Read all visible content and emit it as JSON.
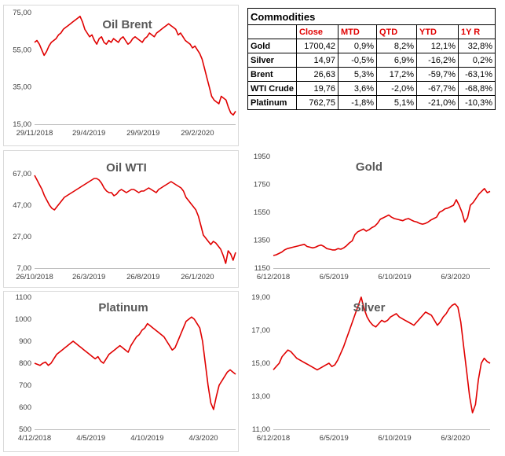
{
  "table": {
    "title": "Commodities",
    "headers": [
      "Close",
      "MTD",
      "QTD",
      "YTD",
      "1Y R"
    ],
    "rows": [
      {
        "name": "Gold",
        "values": [
          "1700,42",
          "0,9%",
          "8,2%",
          "12,1%",
          "32,8%"
        ]
      },
      {
        "name": "Silver",
        "values": [
          "14,97",
          "-0,5%",
          "6,9%",
          "-16,2%",
          "0,2%"
        ]
      },
      {
        "name": "Brent",
        "values": [
          "26,63",
          "5,3%",
          "17,2%",
          "-59,7%",
          "-63,1%"
        ]
      },
      {
        "name": "WTI Crude",
        "values": [
          "19,76",
          "3,6%",
          "-2,0%",
          "-67,7%",
          "-68,8%"
        ]
      },
      {
        "name": "Platinum",
        "values": [
          "762,75",
          "-1,8%",
          "5,1%",
          "-21,0%",
          "-10,3%"
        ]
      }
    ]
  },
  "colors": {
    "line": "#e00000",
    "header_text": "#e00000",
    "title_text": "#595959"
  },
  "chart_data": [
    {
      "type": "line",
      "title": "Oil Brent",
      "xlabel": "",
      "ylabel": "",
      "ylim": [
        15,
        75
      ],
      "yticks": [
        "75,00",
        "55,00",
        "35,00",
        "15,00"
      ],
      "ytick_values": [
        75,
        55,
        35,
        15
      ],
      "xticks": [
        "29/11/2018",
        "29/4/2019",
        "29/9/2019",
        "29/2/2020"
      ],
      "xtick_positions": [
        0,
        0.27,
        0.54,
        0.81
      ],
      "series": [
        {
          "values": [
            59,
            60,
            58,
            55,
            52,
            54,
            57,
            59,
            60,
            61,
            63,
            64,
            66,
            67,
            68,
            69,
            70,
            71,
            72,
            73,
            70,
            66,
            64,
            62,
            63,
            60,
            58,
            61,
            62,
            59,
            58,
            60,
            59,
            61,
            60,
            59,
            61,
            62,
            60,
            58,
            59,
            61,
            62,
            61,
            60,
            59,
            61,
            62,
            64,
            63,
            62,
            64,
            65,
            66,
            67,
            68,
            69,
            68,
            67,
            66,
            63,
            64,
            62,
            60,
            59,
            58,
            56,
            57,
            55,
            53,
            50,
            45,
            40,
            35,
            30,
            28,
            27,
            26,
            30,
            29,
            28,
            24,
            21,
            20,
            22
          ]
        }
      ]
    },
    {
      "type": "line",
      "title": "Oil WTI",
      "xlabel": "",
      "ylabel": "",
      "ylim": [
        7,
        67
      ],
      "yticks": [
        "67,00",
        "47,00",
        "27,00",
        "7,00"
      ],
      "ytick_values": [
        67,
        47,
        27,
        7
      ],
      "xticks": [
        "26/10/2018",
        "26/3/2019",
        "26/8/2019",
        "26/1/2020"
      ],
      "xtick_positions": [
        0,
        0.27,
        0.54,
        0.81
      ],
      "series": [
        {
          "values": [
            66,
            63,
            60,
            57,
            53,
            50,
            47,
            45,
            44,
            46,
            48,
            50,
            52,
            53,
            54,
            55,
            56,
            57,
            58,
            59,
            60,
            61,
            62,
            63,
            64,
            64,
            63,
            61,
            58,
            56,
            55,
            55,
            53,
            54,
            56,
            57,
            56,
            55,
            56,
            57,
            57,
            56,
            55,
            56,
            56,
            57,
            58,
            57,
            56,
            55,
            57,
            58,
            59,
            60,
            61,
            62,
            61,
            60,
            59,
            58,
            56,
            52,
            50,
            48,
            46,
            44,
            40,
            34,
            28,
            26,
            24,
            22,
            24,
            23,
            21,
            19,
            15,
            10,
            18,
            16,
            12,
            17
          ]
        }
      ]
    },
    {
      "type": "line",
      "title": "Gold",
      "xlabel": "",
      "ylabel": "",
      "ylim": [
        1150,
        1950
      ],
      "yticks": [
        "1950",
        "1750",
        "1550",
        "1350",
        "1150"
      ],
      "ytick_values": [
        1950,
        1750,
        1550,
        1350,
        1150
      ],
      "xticks": [
        "6/12/2018",
        "6/5/2019",
        "6/10/2019",
        "6/3/2020"
      ],
      "xtick_positions": [
        0,
        0.28,
        0.56,
        0.84
      ],
      "series": [
        {
          "values": [
            1240,
            1245,
            1255,
            1265,
            1280,
            1290,
            1295,
            1300,
            1305,
            1310,
            1315,
            1320,
            1305,
            1300,
            1295,
            1300,
            1310,
            1315,
            1305,
            1290,
            1285,
            1280,
            1280,
            1290,
            1285,
            1295,
            1310,
            1330,
            1345,
            1390,
            1410,
            1420,
            1430,
            1415,
            1425,
            1440,
            1450,
            1470,
            1500,
            1510,
            1520,
            1530,
            1515,
            1505,
            1500,
            1495,
            1490,
            1500,
            1505,
            1495,
            1485,
            1480,
            1470,
            1465,
            1470,
            1480,
            1495,
            1505,
            1515,
            1550,
            1560,
            1575,
            1580,
            1590,
            1600,
            1640,
            1600,
            1550,
            1480,
            1510,
            1600,
            1620,
            1650,
            1680,
            1700,
            1720,
            1690,
            1700
          ]
        }
      ]
    },
    {
      "type": "line",
      "title": "Platinum",
      "xlabel": "",
      "ylabel": "",
      "ylim": [
        500,
        1100
      ],
      "yticks": [
        "1100",
        "1000",
        "900",
        "800",
        "700",
        "600",
        "500"
      ],
      "ytick_values": [
        1100,
        1000,
        900,
        800,
        700,
        600,
        500
      ],
      "xticks": [
        "4/12/2018",
        "4/5/2019",
        "4/10/2019",
        "4/3/2020"
      ],
      "xtick_positions": [
        0,
        0.28,
        0.56,
        0.84
      ],
      "series": [
        {
          "values": [
            800,
            795,
            790,
            800,
            805,
            790,
            800,
            820,
            840,
            850,
            860,
            870,
            880,
            890,
            900,
            890,
            880,
            870,
            860,
            850,
            840,
            830,
            820,
            830,
            810,
            800,
            820,
            840,
            850,
            860,
            870,
            880,
            870,
            860,
            850,
            880,
            900,
            920,
            930,
            950,
            960,
            980,
            970,
            960,
            950,
            940,
            930,
            920,
            900,
            880,
            860,
            870,
            900,
            930,
            960,
            990,
            1000,
            1010,
            1000,
            980,
            960,
            900,
            800,
            700,
            620,
            590,
            650,
            700,
            720,
            740,
            760,
            770,
            760,
            750
          ]
        }
      ]
    },
    {
      "type": "line",
      "title": "Silver",
      "xlabel": "",
      "ylabel": "",
      "ylim": [
        11,
        19
      ],
      "yticks": [
        "19,00",
        "17,00",
        "15,00",
        "13,00",
        "11,00"
      ],
      "ytick_values": [
        19,
        17,
        15,
        13,
        11
      ],
      "xticks": [
        "6/12/2018",
        "6/5/2019",
        "6/10/2019",
        "6/3/2020"
      ],
      "xtick_positions": [
        0,
        0.28,
        0.56,
        0.84
      ],
      "series": [
        {
          "values": [
            14.6,
            14.8,
            15.0,
            15.4,
            15.6,
            15.8,
            15.7,
            15.5,
            15.3,
            15.2,
            15.1,
            15.0,
            14.9,
            14.8,
            14.7,
            14.6,
            14.7,
            14.8,
            14.9,
            15.0,
            14.8,
            14.9,
            15.2,
            15.6,
            16.0,
            16.5,
            17.0,
            17.5,
            18.0,
            18.5,
            19.0,
            18.3,
            17.8,
            17.5,
            17.3,
            17.2,
            17.4,
            17.6,
            17.5,
            17.6,
            17.8,
            17.9,
            18.0,
            17.8,
            17.7,
            17.6,
            17.5,
            17.4,
            17.3,
            17.5,
            17.7,
            17.9,
            18.1,
            18.0,
            17.9,
            17.6,
            17.3,
            17.5,
            17.8,
            18.0,
            18.3,
            18.5,
            18.6,
            18.4,
            17.5,
            16.0,
            14.5,
            13.0,
            12.0,
            12.5,
            14.0,
            15.0,
            15.3,
            15.1,
            15.0
          ]
        }
      ]
    }
  ]
}
